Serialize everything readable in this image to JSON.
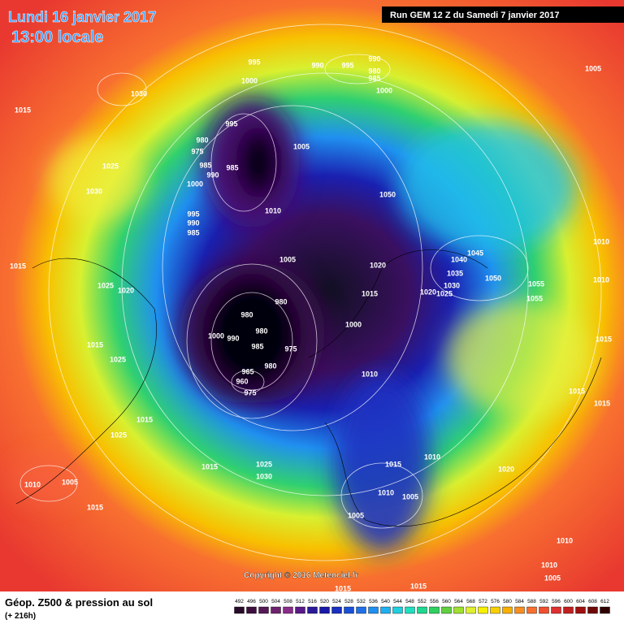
{
  "header": {
    "date": "Lundi 16 janvier 2017",
    "time": "13:00 locale",
    "run": "Run GEM 12 Z du Samedi 7 janvier 2017"
  },
  "map": {
    "copyright": "Copyright © 2016 Meteociel.fr",
    "isobar_labels": [
      995,
      1000,
      990,
      995,
      990,
      980,
      985,
      1000,
      1030,
      1015,
      995,
      980,
      975,
      985,
      990,
      985,
      1000,
      1005,
      1025,
      1030,
      1050,
      995,
      990,
      985,
      1010,
      1015,
      1005,
      1020,
      1045,
      1040,
      1035,
      1030,
      1025,
      1020,
      1050,
      1055,
      1055,
      1010,
      1010,
      1025,
      1020,
      1015,
      980,
      980,
      980,
      1000,
      1000,
      990,
      985,
      975,
      980,
      965,
      960,
      975,
      1015,
      1025,
      1010,
      1015,
      1015,
      1015,
      1015,
      1025,
      1015,
      1025,
      1030,
      1015,
      1010,
      1020,
      1010,
      1005,
      1015,
      1010,
      1005,
      1005,
      1010,
      1010,
      1005,
      1015,
      1015,
      1005
    ]
  },
  "footer": {
    "title": "Géop. Z500 & pression au sol",
    "lead": "(+ 216h)"
  },
  "scale": {
    "labels": [
      492,
      496,
      500,
      504,
      508,
      512,
      516,
      520,
      524,
      528,
      532,
      536,
      540,
      544,
      548,
      552,
      556,
      560,
      564,
      568,
      572,
      576,
      580,
      584,
      588,
      592,
      596,
      600,
      604,
      608,
      612
    ],
    "colors": [
      "#2a0a2a",
      "#3d0f3d",
      "#551a55",
      "#6e236e",
      "#8a2d8a",
      "#5a1a8a",
      "#2a1a9a",
      "#1a1aa8",
      "#1a30c0",
      "#1a50d8",
      "#2070e8",
      "#2090f0",
      "#20b0f0",
      "#20d0e0",
      "#20e0c0",
      "#20d890",
      "#30d060",
      "#60d040",
      "#a0e030",
      "#e0f030",
      "#f8f000",
      "#f8d000",
      "#f8b000",
      "#f89020",
      "#f87030",
      "#f05030",
      "#e03030",
      "#c02020",
      "#a01010",
      "#700808",
      "#300000"
    ]
  }
}
